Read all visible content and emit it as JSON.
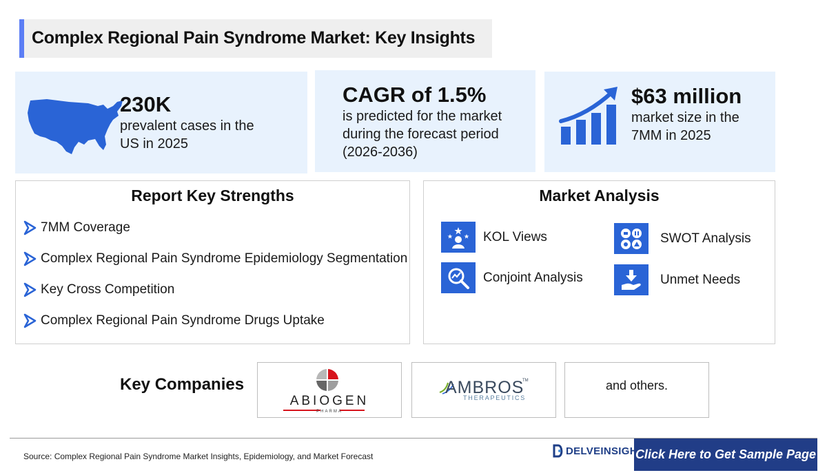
{
  "header": {
    "title": "Complex Regional Pain Syndrome Market: Key Insights"
  },
  "stats": [
    {
      "value": "230K",
      "line1": "prevalent cases in the",
      "line2": "US in 2025",
      "icon": "us-map-icon"
    },
    {
      "value": "CAGR of 1.5%",
      "line1": "is predicted for the market",
      "line2": "during the forecast period",
      "line3": "(2026-2036)"
    },
    {
      "value": "$63 million",
      "line1": "market size in the",
      "line2": "7MM in 2025",
      "icon": "growth-chart-icon"
    }
  ],
  "strengths": {
    "title": "Report Key Strengths",
    "items": [
      "7MM Coverage",
      "Complex Regional Pain Syndrome Epidemiology Segmentation",
      "Key Cross Competition",
      "Complex Regional Pain Syndrome Drugs Uptake"
    ]
  },
  "market_analysis": {
    "title": "Market Analysis",
    "items": [
      {
        "label": "KOL Views",
        "icon": "kol-views-icon"
      },
      {
        "label": "SWOT Analysis",
        "icon": "swot-icon"
      },
      {
        "label": "Conjoint Analysis",
        "icon": "conjoint-analysis-icon"
      },
      {
        "label": "Unmet Needs",
        "icon": "unmet-needs-icon"
      }
    ]
  },
  "companies": {
    "label": "Key Companies",
    "logo1_name": "ABIOGEN",
    "logo1_sub": "PHARMA",
    "logo2_name": "AMBROS",
    "logo2_tm": "TM",
    "logo2_sub": "THERAPEUTICS",
    "others": "and others."
  },
  "footer": {
    "source": "Source: Complex Regional Pain Syndrome Market Insights, Epidemiology, and Market Forecast",
    "brand": "DELVEINSIGHT",
    "cta": "Click Here to Get Sample Page"
  },
  "colors": {
    "accent": "#5c7ef5",
    "icon_blue": "#2a64d6",
    "stat_bg": "#e8f2fd",
    "cta_bg": "#213d87",
    "abiogen_red": "#d7141d"
  }
}
